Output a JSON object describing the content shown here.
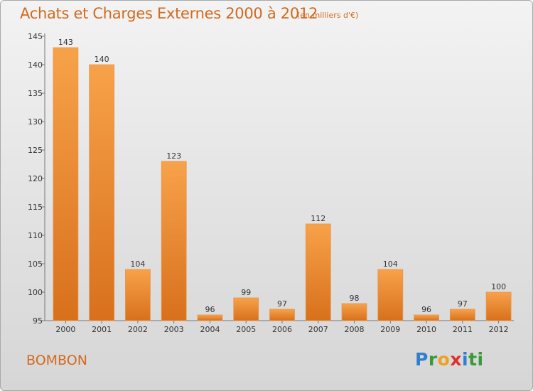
{
  "header": {
    "title": "Achats et Charges Externes 2000 à 2012",
    "subtitle": "(en milliers d'€)"
  },
  "footer": {
    "commune": "BOMBON",
    "logo_text": "Proxiti",
    "logo_letters": [
      "P",
      "r",
      "o",
      "x",
      "i",
      "ti"
    ]
  },
  "colors": {
    "title": "#d2691e",
    "bar_top": "#f7a24a",
    "bar_bottom": "#d8701c"
  },
  "chart_data": {
    "type": "bar",
    "title": "Achats et Charges Externes 2000 à 2012",
    "subtitle": "(en milliers d'€)",
    "categories": [
      "2000",
      "2001",
      "2002",
      "2003",
      "2004",
      "2005",
      "2006",
      "2007",
      "2008",
      "2009",
      "2010",
      "2011",
      "2012"
    ],
    "values": [
      143,
      140,
      104,
      123,
      96,
      99,
      97,
      112,
      98,
      104,
      96,
      97,
      100
    ],
    "ylim": [
      95,
      145
    ],
    "yticks": [
      95,
      100,
      105,
      110,
      115,
      120,
      125,
      130,
      135,
      140,
      145
    ],
    "grid": false,
    "legend": "none"
  }
}
